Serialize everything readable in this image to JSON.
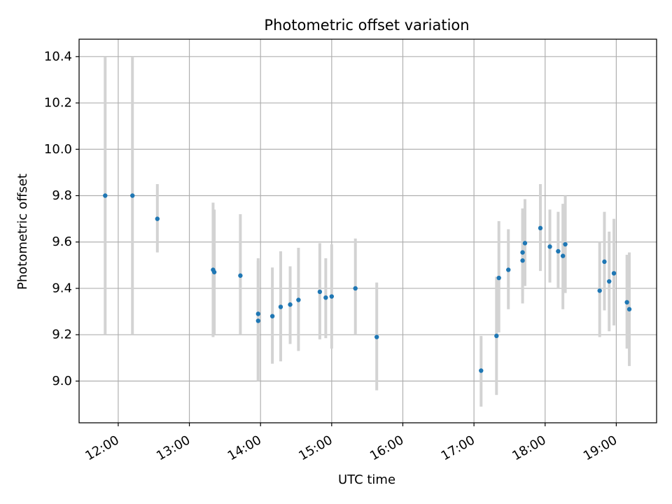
{
  "chart_data": {
    "type": "scatter",
    "title": "Photometric offset variation",
    "xlabel": "UTC time",
    "ylabel": "Photometric offset",
    "xlim": [
      "11:27",
      "19:34"
    ],
    "ylim": [
      8.82,
      10.475
    ],
    "x_ticks": [
      "12:00",
      "13:00",
      "14:00",
      "15:00",
      "16:00",
      "17:00",
      "18:00",
      "19:00"
    ],
    "y_ticks": [
      9.0,
      9.2,
      9.4,
      9.6,
      9.8,
      10.0,
      10.2,
      10.4
    ],
    "grid": true,
    "colors": {
      "point": "#1f77b4",
      "errorbar": "#d3d3d3",
      "grid": "#b0b0b0"
    },
    "series": [
      {
        "points": [
          {
            "t": "11:49",
            "y": 9.8,
            "lo": 9.2,
            "hi": 10.4
          },
          {
            "t": "12:12",
            "y": 9.8,
            "lo": 9.2,
            "hi": 10.4
          },
          {
            "t": "12:33",
            "y": 9.7,
            "lo": 9.555,
            "hi": 9.85
          },
          {
            "t": "13:20",
            "y": 9.48,
            "lo": 9.19,
            "hi": 9.77
          },
          {
            "t": "13:21",
            "y": 9.47,
            "lo": 9.2,
            "hi": 9.74
          },
          {
            "t": "13:43",
            "y": 9.455,
            "lo": 9.2,
            "hi": 9.72
          },
          {
            "t": "13:58",
            "y": 9.29,
            "lo": 9.0,
            "hi": 9.53
          },
          {
            "t": "13:58",
            "y": 9.26,
            "lo": 9.0,
            "hi": 9.52
          },
          {
            "t": "14:10",
            "y": 9.28,
            "lo": 9.075,
            "hi": 9.49
          },
          {
            "t": "14:17",
            "y": 9.32,
            "lo": 9.085,
            "hi": 9.56
          },
          {
            "t": "14:25",
            "y": 9.33,
            "lo": 9.16,
            "hi": 9.495
          },
          {
            "t": "14:32",
            "y": 9.35,
            "lo": 9.13,
            "hi": 9.575
          },
          {
            "t": "14:50",
            "y": 9.385,
            "lo": 9.18,
            "hi": 9.595
          },
          {
            "t": "14:55",
            "y": 9.36,
            "lo": 9.185,
            "hi": 9.53
          },
          {
            "t": "15:00",
            "y": 9.365,
            "lo": 9.14,
            "hi": 9.59
          },
          {
            "t": "15:20",
            "y": 9.4,
            "lo": 9.2,
            "hi": 9.615
          },
          {
            "t": "15:38",
            "y": 9.19,
            "lo": 8.96,
            "hi": 9.425
          },
          {
            "t": "17:06",
            "y": 9.045,
            "lo": 8.89,
            "hi": 9.195
          },
          {
            "t": "17:19",
            "y": 9.195,
            "lo": 8.94,
            "hi": 9.45
          },
          {
            "t": "17:21",
            "y": 9.445,
            "lo": 9.21,
            "hi": 9.69
          },
          {
            "t": "17:29",
            "y": 9.48,
            "lo": 9.31,
            "hi": 9.655
          },
          {
            "t": "17:41",
            "y": 9.52,
            "lo": 9.335,
            "hi": 9.725
          },
          {
            "t": "17:41",
            "y": 9.555,
            "lo": 9.37,
            "hi": 9.745
          },
          {
            "t": "17:43",
            "y": 9.595,
            "lo": 9.41,
            "hi": 9.785
          },
          {
            "t": "17:56",
            "y": 9.66,
            "lo": 9.475,
            "hi": 9.85
          },
          {
            "t": "18:04",
            "y": 9.58,
            "lo": 9.425,
            "hi": 9.74
          },
          {
            "t": "18:11",
            "y": 9.56,
            "lo": 9.4,
            "hi": 9.73
          },
          {
            "t": "18:15",
            "y": 9.54,
            "lo": 9.31,
            "hi": 9.765
          },
          {
            "t": "18:17",
            "y": 9.59,
            "lo": 9.38,
            "hi": 9.8
          },
          {
            "t": "18:46",
            "y": 9.39,
            "lo": 9.19,
            "hi": 9.6
          },
          {
            "t": "18:50",
            "y": 9.515,
            "lo": 9.305,
            "hi": 9.73
          },
          {
            "t": "18:54",
            "y": 9.43,
            "lo": 9.215,
            "hi": 9.645
          },
          {
            "t": "18:58",
            "y": 9.465,
            "lo": 9.24,
            "hi": 9.7
          },
          {
            "t": "19:09",
            "y": 9.34,
            "lo": 9.14,
            "hi": 9.545
          },
          {
            "t": "19:11",
            "y": 9.31,
            "lo": 9.065,
            "hi": 9.555
          }
        ]
      }
    ]
  }
}
